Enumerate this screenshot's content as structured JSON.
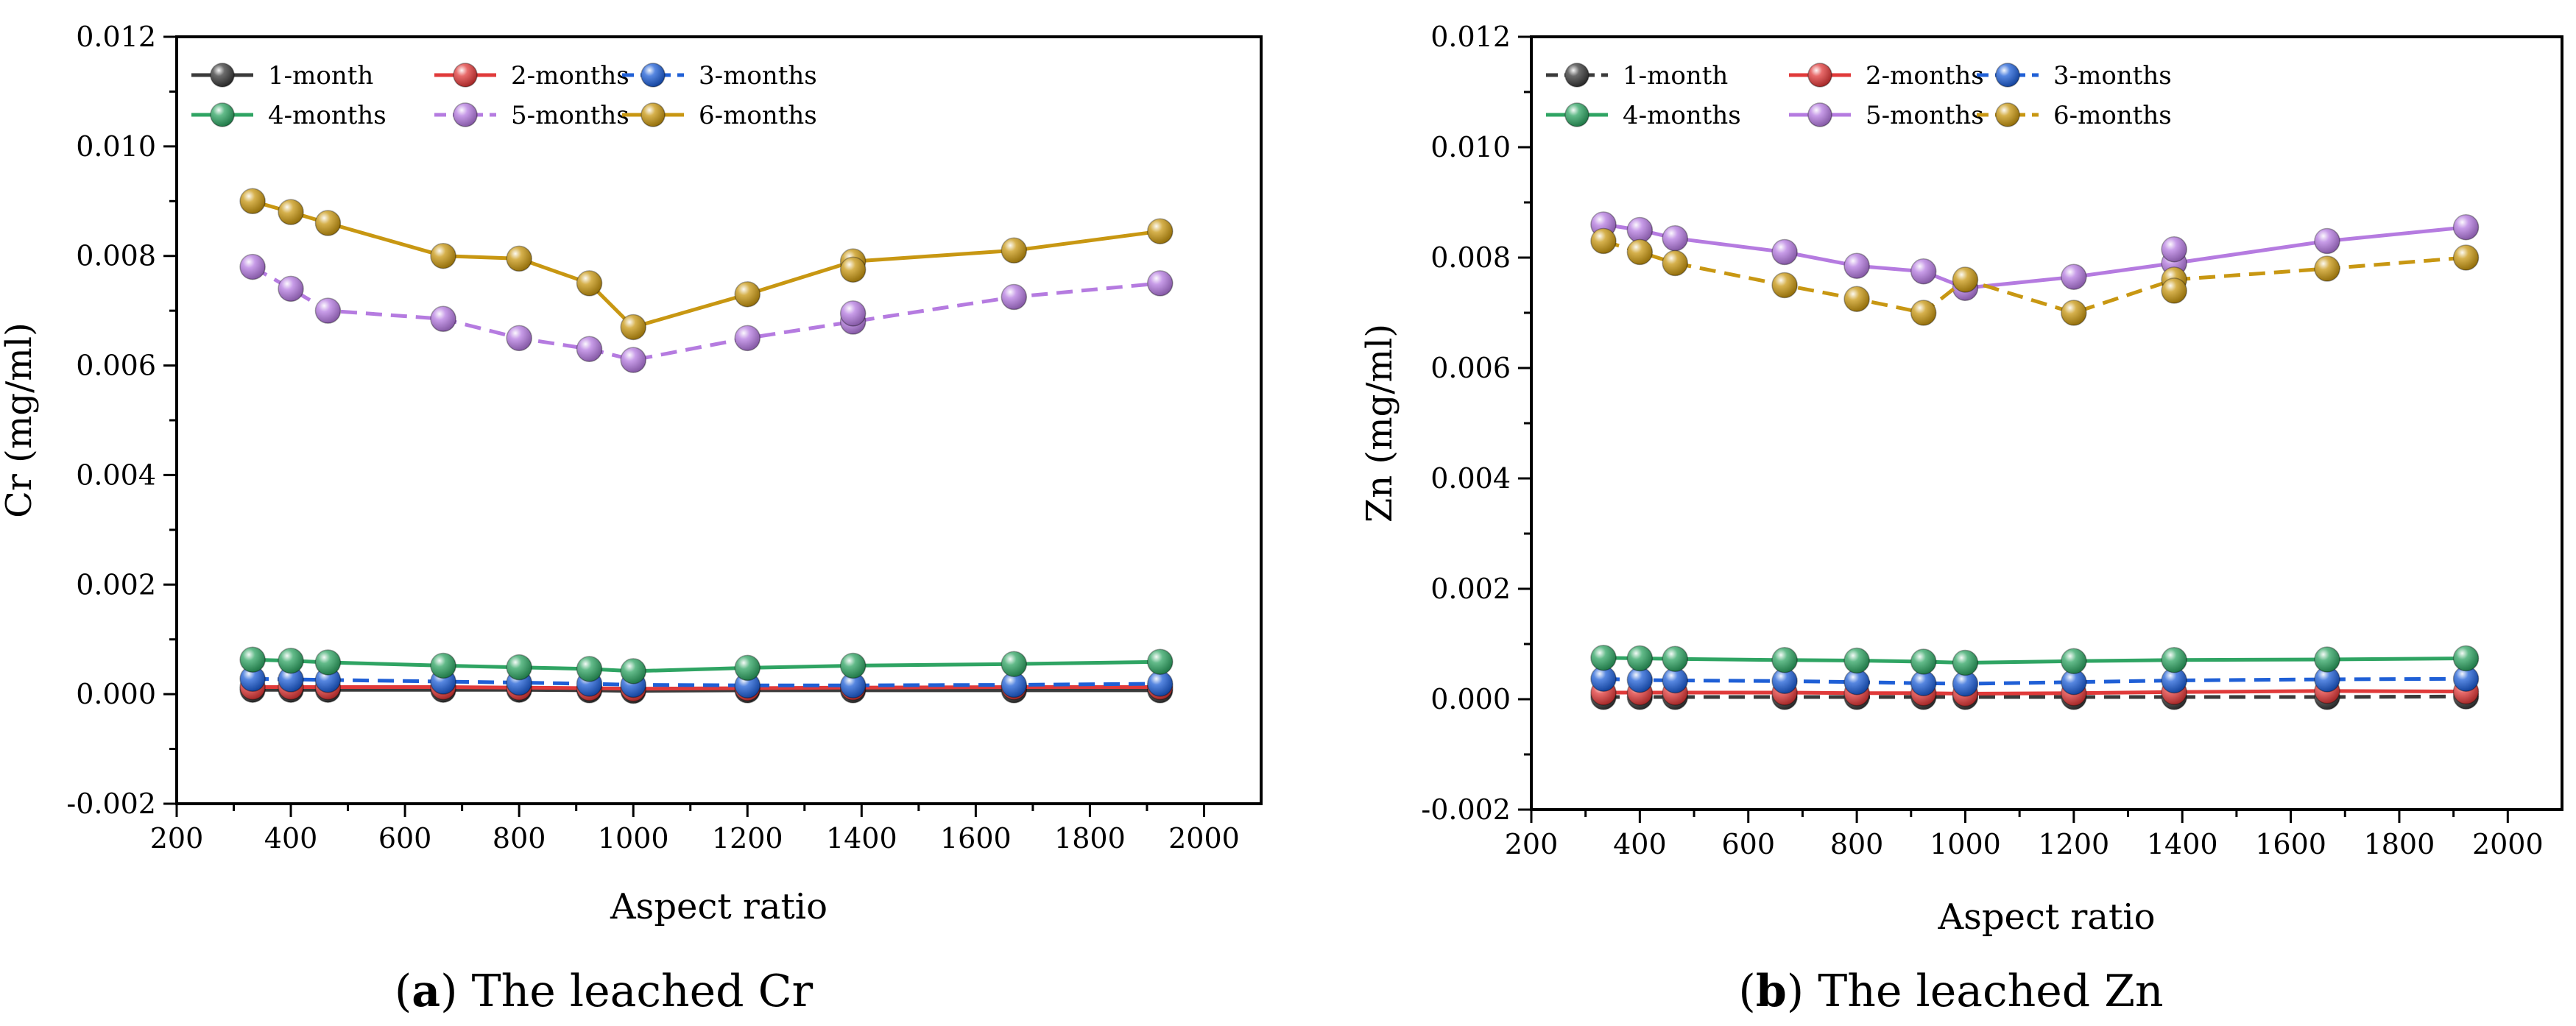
{
  "colors": {
    "1-month": "#3a3a3a",
    "2-months": "#e03a3a",
    "3-months": "#1f5fd6",
    "4-months": "#2fa463",
    "5-months": "#b57be0",
    "6-months": "#c89712"
  },
  "chart_data": [
    {
      "type": "line",
      "panel_letter": "a",
      "caption": " The leached Cr",
      "title": "",
      "xlabel": "Aspect ratio",
      "ylabel": "Cr (mg/ml)",
      "xlim": [
        200,
        2100
      ],
      "ylim": [
        -0.002,
        0.012
      ],
      "xticks": [
        200,
        400,
        600,
        800,
        1000,
        1200,
        1400,
        1600,
        1800,
        2000
      ],
      "yticks": [
        -0.002,
        0.0,
        0.002,
        0.004,
        0.006,
        0.008,
        0.01,
        0.012
      ],
      "xtick_labels": [
        "200",
        "400",
        "600",
        "800",
        "1000",
        "1200",
        "1400",
        "1600",
        "1800",
        "2000"
      ],
      "ytick_labels": [
        "-0.002",
        "0.000",
        "0.002",
        "0.004",
        "0.006",
        "0.008",
        "0.010",
        "0.012"
      ],
      "grid": false,
      "legend": "top-left",
      "x": [
        333,
        400,
        465,
        667,
        800,
        923,
        1000,
        1200,
        1385,
        1667,
        1923
      ],
      "series": [
        {
          "name": "1-month",
          "dash": false,
          "values": [
            8e-05,
            8e-05,
            8e-05,
            8e-05,
            8e-05,
            7e-05,
            6e-05,
            7e-05,
            7e-05,
            7e-05,
            7e-05
          ]
        },
        {
          "name": "2-months",
          "dash": false,
          "values": [
            0.00013,
            0.00013,
            0.00013,
            0.00013,
            0.00012,
            0.00011,
            0.0001,
            0.00011,
            0.00012,
            0.00013,
            0.00013
          ]
        },
        {
          "name": "3-months",
          "dash": true,
          "values": [
            0.00028,
            0.00027,
            0.00026,
            0.00023,
            0.00021,
            0.00019,
            0.00017,
            0.00016,
            0.00016,
            0.00017,
            0.00019
          ]
        },
        {
          "name": "4-months",
          "dash": false,
          "values": [
            0.00063,
            0.00061,
            0.00058,
            0.00052,
            0.00049,
            0.00046,
            0.00042,
            0.00048,
            0.00052,
            0.00055,
            0.00059
          ]
        },
        {
          "name": "5-months",
          "dash": true,
          "values": [
            0.0078,
            0.0074,
            0.007,
            0.00685,
            0.0065,
            0.0063,
            0.0061,
            0.0065,
            0.0068,
            0.00725,
            0.0075
          ]
        },
        {
          "name": "6-months",
          "dash": false,
          "values": [
            0.009,
            0.0088,
            0.0086,
            0.008,
            0.00795,
            0.0075,
            0.0067,
            0.0073,
            0.0079,
            0.0081,
            0.00845
          ]
        }
      ],
      "extra_markers": [
        {
          "series": "6-months",
          "x": 1385,
          "value": 0.00775
        },
        {
          "series": "5-months",
          "x": 1385,
          "value": 0.00695
        }
      ]
    },
    {
      "type": "line",
      "panel_letter": "b",
      "caption": " The leached Zn",
      "title": "",
      "xlabel": "Aspect ratio",
      "ylabel": "Zn (mg/ml)",
      "xlim": [
        200,
        2100
      ],
      "ylim": [
        -0.002,
        0.012
      ],
      "xticks": [
        200,
        400,
        600,
        800,
        1000,
        1200,
        1400,
        1600,
        1800,
        2000
      ],
      "yticks": [
        -0.002,
        0.0,
        0.002,
        0.004,
        0.006,
        0.008,
        0.01,
        0.012
      ],
      "xtick_labels": [
        "200",
        "400",
        "600",
        "800",
        "1000",
        "1200",
        "1400",
        "1600",
        "1800",
        "2000"
      ],
      "ytick_labels": [
        "-0.002",
        "0.000",
        "0.002",
        "0.004",
        "0.006",
        "0.008",
        "0.010",
        "0.012"
      ],
      "grid": false,
      "legend": "top-left",
      "x": [
        333,
        400,
        465,
        667,
        800,
        923,
        1000,
        1200,
        1385,
        1667,
        1923
      ],
      "series": [
        {
          "name": "1-month",
          "dash": true,
          "values": [
            4e-05,
            4e-05,
            4e-05,
            4e-05,
            4e-05,
            4e-05,
            4e-05,
            4e-05,
            4e-05,
            4e-05,
            5e-05
          ]
        },
        {
          "name": "2-months",
          "dash": false,
          "values": [
            0.00012,
            0.00012,
            0.00012,
            0.00012,
            0.00011,
            0.00011,
            0.0001,
            0.00011,
            0.00013,
            0.00015,
            0.00014
          ]
        },
        {
          "name": "3-months",
          "dash": true,
          "values": [
            0.00037,
            0.00035,
            0.00034,
            0.00033,
            0.00031,
            0.00029,
            0.00028,
            0.00031,
            0.00034,
            0.00036,
            0.00037
          ]
        },
        {
          "name": "4-months",
          "dash": false,
          "values": [
            0.00075,
            0.00074,
            0.00073,
            0.00071,
            0.0007,
            0.00068,
            0.00066,
            0.00069,
            0.00071,
            0.00072,
            0.00074
          ]
        },
        {
          "name": "5-months",
          "dash": false,
          "values": [
            0.0086,
            0.0085,
            0.00835,
            0.0081,
            0.00785,
            0.00775,
            0.00745,
            0.00765,
            0.0079,
            0.0083,
            0.00855
          ]
        },
        {
          "name": "6-months",
          "dash": true,
          "values": [
            0.0083,
            0.0081,
            0.0079,
            0.0075,
            0.00725,
            0.007,
            0.0076,
            0.007,
            0.0076,
            0.0078,
            0.008
          ]
        }
      ],
      "extra_markers": [
        {
          "series": "5-months",
          "x": 1385,
          "value": 0.00815
        },
        {
          "series": "6-months",
          "x": 1385,
          "value": 0.0074
        }
      ]
    }
  ]
}
